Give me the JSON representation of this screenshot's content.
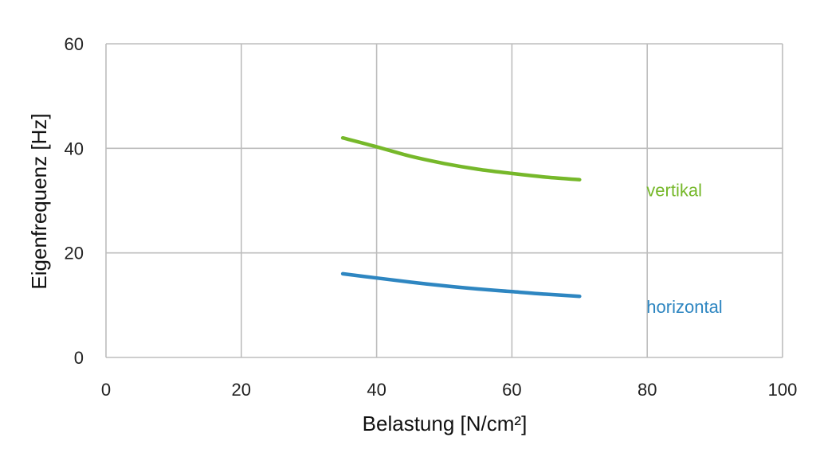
{
  "chart_data": {
    "type": "line",
    "title": "",
    "xlabel": "Belastung [N/cm²]",
    "ylabel": "Eigenfrequenz [Hz]",
    "xlim": [
      0,
      100
    ],
    "ylim": [
      0,
      60
    ],
    "x_ticks": [
      "0",
      "20",
      "40",
      "60",
      "80",
      "100"
    ],
    "y_ticks": [
      "0",
      "20",
      "40",
      "60"
    ],
    "grid": true,
    "legend": "inline labels right of lines",
    "series": [
      {
        "name": "vertikal",
        "color": "#76b82a",
        "x": [
          35,
          40,
          45,
          50,
          55,
          60,
          65,
          70
        ],
        "y": [
          42,
          40.3,
          38.5,
          37.1,
          36.0,
          35.2,
          34.5,
          34.0
        ]
      },
      {
        "name": "horizontal",
        "color": "#2e86c1",
        "x": [
          35,
          40,
          45,
          50,
          55,
          60,
          65,
          70
        ],
        "y": [
          16,
          15.2,
          14.4,
          13.7,
          13.1,
          12.6,
          12.1,
          11.7
        ]
      }
    ]
  }
}
